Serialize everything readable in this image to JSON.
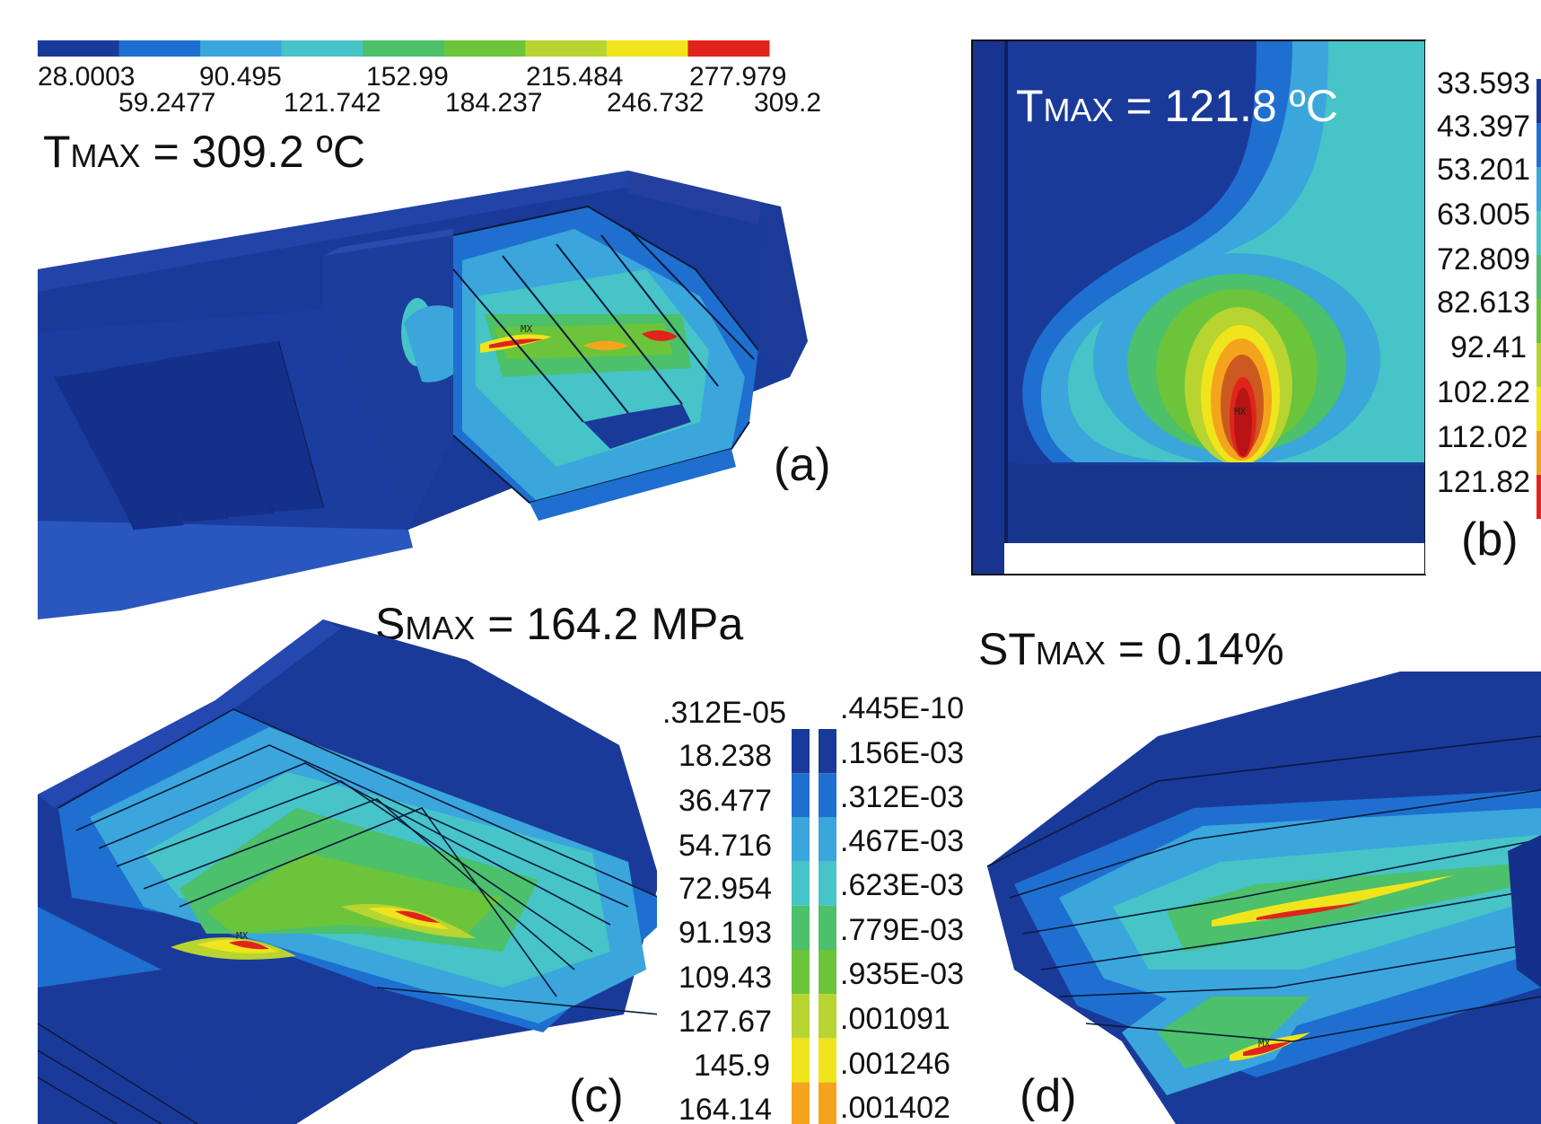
{
  "panel_a": {
    "colorbar_row1": [
      "28.0003",
      "90.495",
      "152.99",
      "215.484",
      "277.979"
    ],
    "colorbar_row2": [
      "59.2477",
      "121.742",
      "184.237",
      "246.732",
      "309.2"
    ],
    "tmax_prefix": "T",
    "tmax_sub": "MAX",
    "tmax_value": " = 309.2 ºC",
    "tag": "(a)",
    "marker": "MX"
  },
  "panel_b": {
    "tmax_prefix": "T",
    "tmax_sub": "MAX",
    "tmax_value": " = 121.8 ºC",
    "legend": [
      "33.593",
      "43.397",
      "53.201",
      "63.005",
      "72.809",
      "82.613",
      "92.41",
      "102.22",
      "112.02",
      "121.82"
    ],
    "tag": "(b)",
    "marker": "MX"
  },
  "panel_c": {
    "smax_prefix": "S",
    "smax_sub": "MAX",
    "smax_value": " = 164.2 MPa",
    "legend": [
      ".312E-05",
      "18.238",
      "36.477",
      "54.716",
      "72.954",
      "91.193",
      "109.43",
      "127.67",
      "145.9",
      "164.14"
    ],
    "tag": "(c)",
    "marker": "MX"
  },
  "panel_d": {
    "stmax_prefix": "ST",
    "stmax_sub": "MAX",
    "stmax_value": " = 0.14%",
    "legend": [
      ".445E-10",
      ".156E-03",
      ".312E-03",
      ".467E-03",
      ".623E-03",
      ".779E-03",
      ".935E-03",
      ".001091",
      ".001246",
      ".001402"
    ],
    "tag": "(d)",
    "marker": "MX"
  },
  "palette": [
    "#1a3a9a",
    "#1e6fd0",
    "#3aa6dc",
    "#46c4c8",
    "#4cc06a",
    "#6cc43a",
    "#b8d430",
    "#f0e41c",
    "#f4a41c",
    "#e0241c"
  ]
}
